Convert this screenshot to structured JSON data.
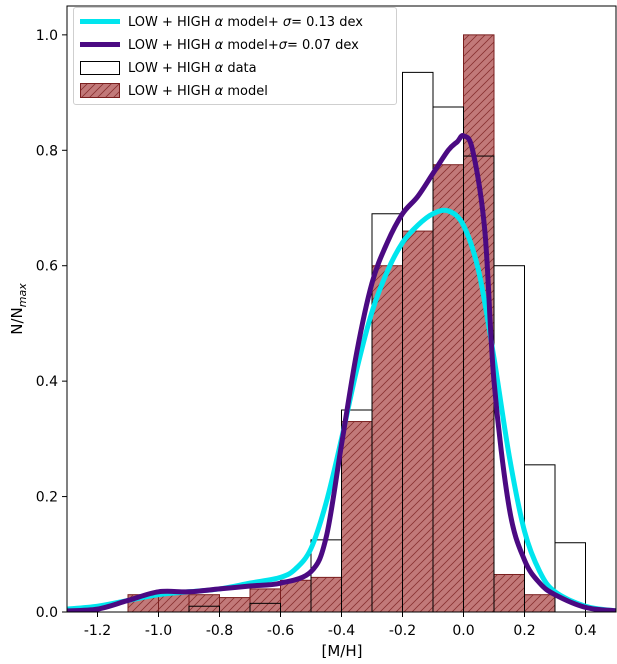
{
  "chart_data": {
    "type": "bar",
    "xlabel": "[M/H]",
    "ylabel_main": "N/N",
    "ylabel_sub": "max",
    "xlim": [
      -1.3,
      0.5
    ],
    "ylim": [
      0.0,
      1.05
    ],
    "xticks": [
      -1.2,
      -1.0,
      -0.8,
      -0.6,
      -0.4,
      -0.2,
      0.0,
      0.2,
      0.4
    ],
    "xtick_labels": [
      "-1.2",
      "-1.0",
      "-0.8",
      "-0.6",
      "-0.4",
      "-0.2",
      "0.0",
      "0.2",
      "0.4"
    ],
    "yticks": [
      0.0,
      0.2,
      0.4,
      0.6,
      0.8,
      1.0
    ],
    "ytick_labels": [
      "0.0",
      "0.2",
      "0.4",
      "0.6",
      "0.8",
      "1.0"
    ],
    "bin_edges": [
      -1.1,
      -1.0,
      -0.9,
      -0.8,
      -0.7,
      -0.6,
      -0.5,
      -0.4,
      -0.3,
      -0.2,
      -0.1,
      0.0,
      0.1,
      0.2,
      0.3,
      0.4
    ],
    "histograms": [
      {
        "key": "model",
        "label": "LOW + HIGH α model",
        "values": [
          0.03,
          0.035,
          0.03,
          0.025,
          0.04,
          0.055,
          0.06,
          0.33,
          0.6,
          0.66,
          0.775,
          1.0,
          0.065,
          0.03,
          0.0
        ],
        "face_color": "#c27979",
        "edge_color": "#7a1f1f",
        "hatch": true
      },
      {
        "key": "data",
        "label": "LOW + HIGH α data",
        "values": [
          0.0,
          0.0,
          0.01,
          0.0,
          0.015,
          0.0,
          0.125,
          0.35,
          0.69,
          0.935,
          0.875,
          0.79,
          0.6,
          0.255,
          0.12
        ],
        "face_color": "none",
        "edge_color": "#000000",
        "hatch": false
      }
    ],
    "series": [
      {
        "name": "LOW + HIGH α model+ σ= 0.13 dex",
        "color": "#00e5ee",
        "x": [
          -1.3,
          -1.2,
          -1.1,
          -1.0,
          -0.9,
          -0.8,
          -0.7,
          -0.6,
          -0.55,
          -0.5,
          -0.45,
          -0.4,
          -0.35,
          -0.3,
          -0.25,
          -0.2,
          -0.15,
          -0.1,
          -0.05,
          0.0,
          0.05,
          0.1,
          0.15,
          0.2,
          0.25,
          0.3,
          0.4,
          0.5
        ],
        "y": [
          0.005,
          0.01,
          0.02,
          0.03,
          0.035,
          0.04,
          0.05,
          0.06,
          0.075,
          0.11,
          0.19,
          0.3,
          0.42,
          0.52,
          0.59,
          0.64,
          0.67,
          0.69,
          0.695,
          0.67,
          0.59,
          0.44,
          0.27,
          0.14,
          0.07,
          0.035,
          0.01,
          0.002
        ]
      },
      {
        "name": "LOW + HIGH α model+σ= 0.07 dex",
        "color": "#4b0a82",
        "x": [
          -1.3,
          -1.2,
          -1.1,
          -1.0,
          -0.9,
          -0.8,
          -0.7,
          -0.6,
          -0.5,
          -0.45,
          -0.4,
          -0.35,
          -0.3,
          -0.25,
          -0.2,
          -0.15,
          -0.1,
          -0.05,
          -0.02,
          0.0,
          0.03,
          0.07,
          0.1,
          0.15,
          0.2,
          0.25,
          0.3,
          0.4,
          0.5
        ],
        "y": [
          0.002,
          0.005,
          0.02,
          0.035,
          0.035,
          0.04,
          0.045,
          0.05,
          0.07,
          0.13,
          0.29,
          0.45,
          0.57,
          0.64,
          0.69,
          0.72,
          0.76,
          0.8,
          0.815,
          0.825,
          0.8,
          0.66,
          0.4,
          0.18,
          0.09,
          0.05,
          0.03,
          0.008,
          0.002
        ]
      }
    ],
    "legend_position": "top-left",
    "grid": false
  },
  "legend": {
    "items": [
      {
        "prefix": "LOW + HIGH ",
        "alpha": "α",
        "mid": " model+ ",
        "sigma": "σ",
        "suffix": "= 0.13 dex"
      },
      {
        "prefix": "LOW + HIGH ",
        "alpha": "α",
        "mid": " model+",
        "sigma": "σ",
        "suffix": "= 0.07 dex"
      },
      {
        "prefix": "LOW + HIGH ",
        "alpha": "α",
        "mid": " data",
        "sigma": "",
        "suffix": ""
      },
      {
        "prefix": "LOW + HIGH ",
        "alpha": "α",
        "mid": " model",
        "sigma": "",
        "suffix": ""
      }
    ]
  }
}
